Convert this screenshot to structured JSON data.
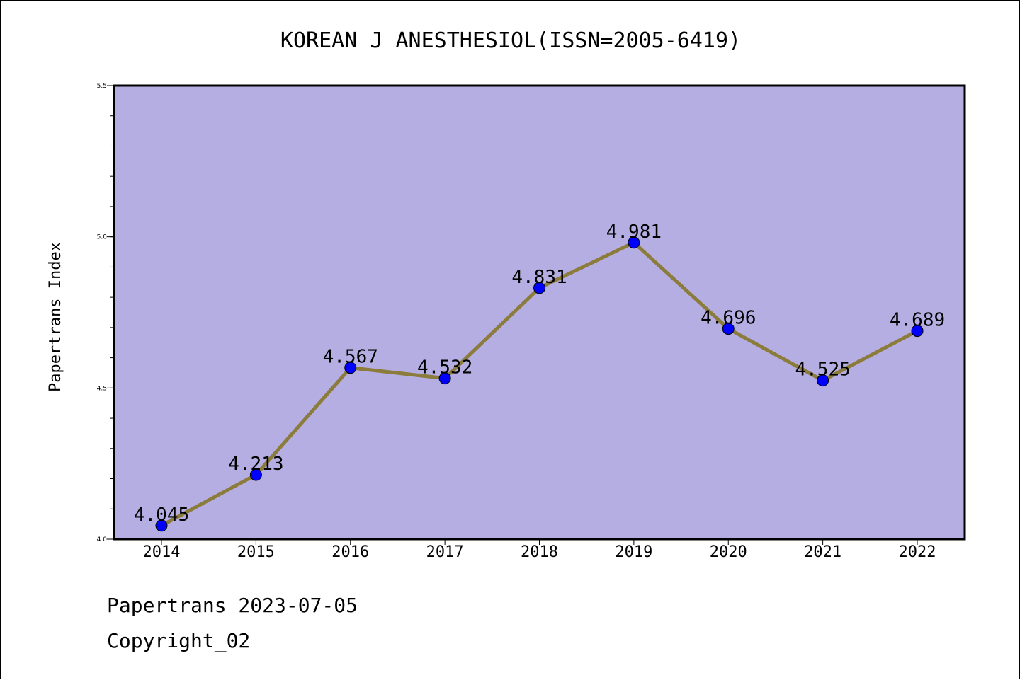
{
  "chart_data": {
    "type": "line",
    "title": "KOREAN J ANESTHESIOL(ISSN=2005-6419)",
    "xlabel": "",
    "ylabel": "Papertrans Index",
    "categories": [
      "2014",
      "2015",
      "2016",
      "2017",
      "2018",
      "2019",
      "2020",
      "2021",
      "2022"
    ],
    "values": [
      4.045,
      4.213,
      4.567,
      4.532,
      4.831,
      4.981,
      4.696,
      4.525,
      4.689
    ],
    "data_labels": [
      "4.045",
      "4.213",
      "4.567",
      "4.532",
      "4.831",
      "4.981",
      "4.696",
      "4.525",
      "4.689"
    ],
    "ylim": [
      4.0,
      5.5
    ],
    "yticks": [
      4.0,
      4.5,
      5.0,
      5.5
    ],
    "ytick_labels": [
      "4.0",
      "4.5",
      "5.0",
      "5.5"
    ],
    "grid": false,
    "colors": {
      "plot_background": "#b5aee2",
      "line": "#8b7c3c",
      "marker": "#0000ff",
      "axes": "#000000"
    }
  },
  "footer": {
    "source": "Papertrans 2023-07-05",
    "copyright": "Copyright_02"
  }
}
